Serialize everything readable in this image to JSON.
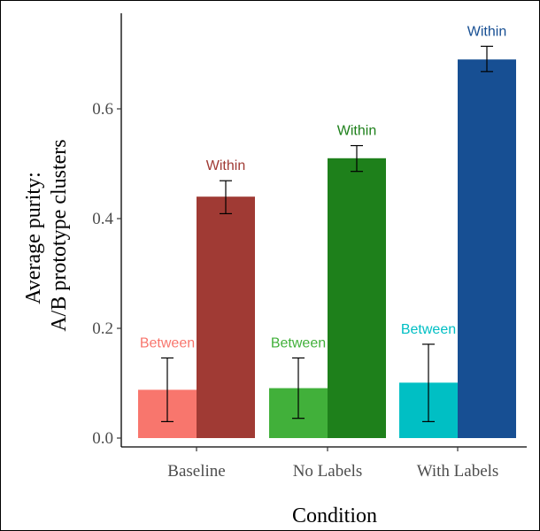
{
  "chart_data": {
    "type": "bar",
    "title": "",
    "xlabel": "Condition",
    "ylabel_lines": [
      "Average purity:",
      "A/B prototype clusters"
    ],
    "ylim": [
      -0.01,
      0.76
    ],
    "yticks": [
      0.0,
      0.2,
      0.4,
      0.6
    ],
    "ytick_labels": [
      "0.0",
      "0.2",
      "0.4",
      "0.6"
    ],
    "categories": [
      "Baseline",
      "No Labels",
      "With Labels"
    ],
    "grid": false,
    "legend": "none",
    "series": [
      {
        "name": "Between",
        "values": [
          0.088,
          0.091,
          0.101
        ],
        "error_low": [
          0.03,
          0.036,
          0.03
        ],
        "error_high": [
          0.146,
          0.146,
          0.171
        ],
        "colors": [
          "#f8766d",
          "#41b03a",
          "#00bfc4"
        ],
        "labels": [
          "Between",
          "Between",
          "Between"
        ]
      },
      {
        "name": "Within",
        "values": [
          0.44,
          0.51,
          0.69
        ],
        "error_low": [
          0.409,
          0.486,
          0.668
        ],
        "error_high": [
          0.469,
          0.533,
          0.714
        ],
        "colors": [
          "#a03a34",
          "#1e801b",
          "#174f93"
        ],
        "labels": [
          "Within",
          "Within",
          "Within"
        ]
      }
    ]
  }
}
